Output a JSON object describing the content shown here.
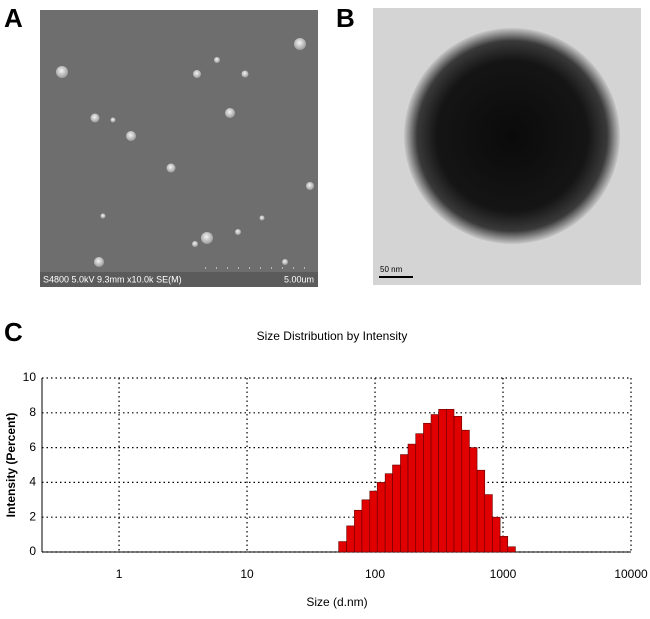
{
  "panels": {
    "a": {
      "label": "A",
      "caption": "S4800 5.0kV 9.3mm x10.0k SE(M)",
      "scale": "5.00um"
    },
    "b": {
      "label": "B",
      "scale": "50 nm"
    },
    "c": {
      "label": "C"
    }
  },
  "chart_data": {
    "type": "histogram",
    "title": "Size Distribution by Intensity",
    "x_label": "Size (d.nm)",
    "y_label": "Intensity (Percent)",
    "x_scale": "log",
    "color": "#e00000",
    "grid": true,
    "bins": [
      52,
      60,
      69,
      79,
      91,
      104,
      120,
      137,
      158,
      181,
      208,
      239,
      274,
      314,
      361,
      414,
      476,
      546,
      627,
      720,
      826,
      949,
      1089,
      1250
    ],
    "values": [
      0.6,
      1.5,
      2.4,
      3.0,
      3.5,
      4.0,
      4.5,
      5.0,
      5.6,
      6.2,
      6.8,
      7.4,
      7.9,
      8.2,
      8.2,
      7.8,
      7.0,
      6.0,
      4.7,
      3.3,
      2.0,
      0.9,
      0.3
    ],
    "xlim": [
      0.25,
      10000
    ],
    "xticks": [
      1,
      10,
      100,
      1000,
      10000
    ],
    "ylim": [
      0,
      10
    ],
    "yticks": [
      0,
      2,
      4,
      6,
      8,
      10
    ]
  }
}
